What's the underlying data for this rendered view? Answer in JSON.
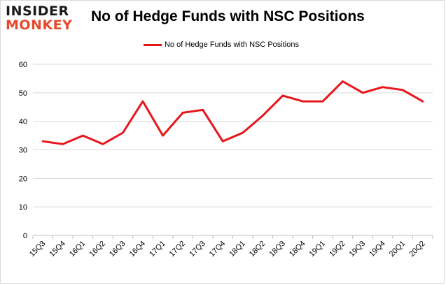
{
  "logo": {
    "line1": "INSIDER",
    "line2": "MONKEY"
  },
  "chart_data": {
    "type": "line",
    "title": "No of Hedge Funds with NSC Positions",
    "xlabel": "",
    "ylabel": "",
    "ylim": [
      0,
      60
    ],
    "yticks": [
      0,
      10,
      20,
      30,
      40,
      50,
      60
    ],
    "grid": true,
    "legend_position": "top-center",
    "categories": [
      "15Q3",
      "15Q4",
      "16Q1",
      "16Q2",
      "16Q3",
      "16Q4",
      "17Q1",
      "17Q2",
      "17Q3",
      "17Q4",
      "18Q1",
      "18Q2",
      "18Q3",
      "18Q4",
      "19Q1",
      "19Q2",
      "19Q3",
      "19Q4",
      "20Q1",
      "20Q2"
    ],
    "series": [
      {
        "name": "No of Hedge Funds with NSC Positions",
        "color": "#e8151b",
        "values": [
          33,
          32,
          35,
          32,
          36,
          47,
          35,
          43,
          44,
          33,
          36,
          42,
          49,
          47,
          47,
          54,
          50,
          52,
          51,
          47
        ]
      }
    ]
  }
}
